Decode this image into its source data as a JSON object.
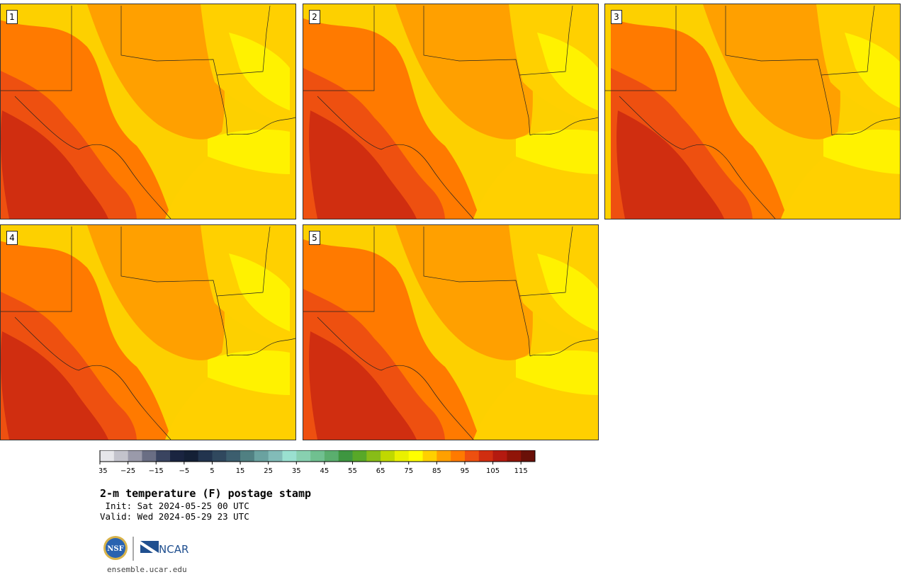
{
  "panels": [
    {
      "label": "1"
    },
    {
      "label": "2"
    },
    {
      "label": "3"
    },
    {
      "label": "4"
    },
    {
      "label": "5"
    }
  ],
  "colorbar": {
    "ticks": [
      "−35",
      "−25",
      "−15",
      "−5",
      "5",
      "15",
      "25",
      "35",
      "45",
      "55",
      "65",
      "75",
      "85",
      "95",
      "105",
      "115"
    ],
    "colors": [
      "#e6e6ea",
      "#c3c3cc",
      "#9a9aaa",
      "#6a6e84",
      "#3a4460",
      "#1a2440",
      "#142036",
      "#22344e",
      "#30485e",
      "#3c5e6e",
      "#508082",
      "#6aa2a0",
      "#82bcb8",
      "#9ae0d0",
      "#88d0b0",
      "#70c090",
      "#5aae6e",
      "#3e9640",
      "#58a828",
      "#88bc18",
      "#c0d800",
      "#eaf000",
      "#ffff00",
      "#ffd000",
      "#ffa000",
      "#ff7a00",
      "#ee5010",
      "#d02e10",
      "#b41a10",
      "#901408",
      "#6a1008"
    ]
  },
  "title": "2-m temperature (F) postage stamp",
  "init": " Init: Sat 2024-05-25 00 UTC",
  "valid": "Valid: Wed 2024-05-29 23 UTC",
  "logos": {
    "nsf": "NSF",
    "ncar": "NCAR"
  },
  "footer": "ensemble.ucar.edu"
}
